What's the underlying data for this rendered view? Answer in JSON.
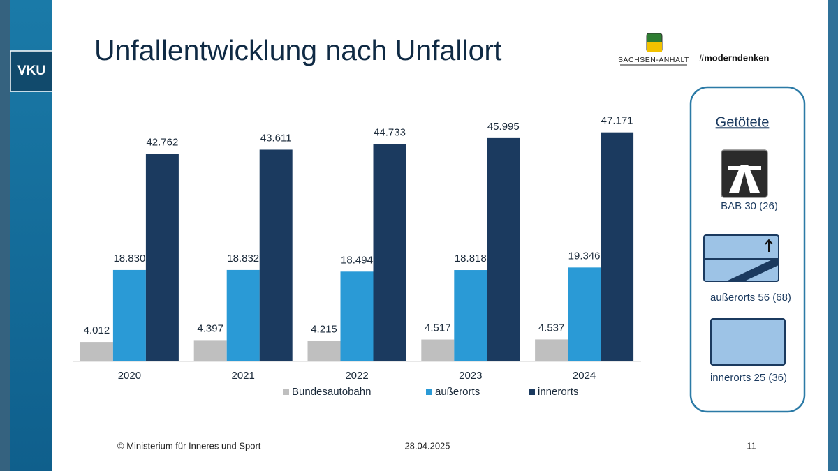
{
  "header": {
    "badge": "VKU",
    "title": "Unfallentwicklung nach Unfallort",
    "state": "SACHSEN-ANHALT",
    "hashtag": "#moderndenken"
  },
  "chart_data": {
    "type": "bar",
    "categories": [
      "2020",
      "2021",
      "2022",
      "2023",
      "2024"
    ],
    "series": [
      {
        "name": "Bundesautobahn",
        "color": "#bfbfbf",
        "values": [
          4012,
          4397,
          4215,
          4517,
          4537
        ],
        "value_labels": [
          "4.012",
          "4.397",
          "4.215",
          "4.517",
          "4.537"
        ]
      },
      {
        "name": "außerorts",
        "color": "#2a9ad6",
        "values": [
          18830,
          18832,
          18494,
          18818,
          19346
        ],
        "value_labels": [
          "18.830",
          "18.832",
          "18.494",
          "18.818",
          "19.346"
        ]
      },
      {
        "name": "innerorts",
        "color": "#1b3a5f",
        "values": [
          42762,
          43611,
          44733,
          45995,
          47171
        ],
        "value_labels": [
          "42.762",
          "43.611",
          "44.733",
          "45.995",
          "47.171"
        ]
      }
    ],
    "ylim": [
      0,
      50000
    ],
    "legend": "bottom"
  },
  "panel": {
    "title": "Getötete",
    "items": [
      "BAB 30 (26)",
      "außerorts 56 (68)",
      "innerorts 25 (36)"
    ]
  },
  "footer": {
    "copyright": "© Ministerium für Inneres und Sport",
    "date": "28.04.2025",
    "page": "11"
  }
}
